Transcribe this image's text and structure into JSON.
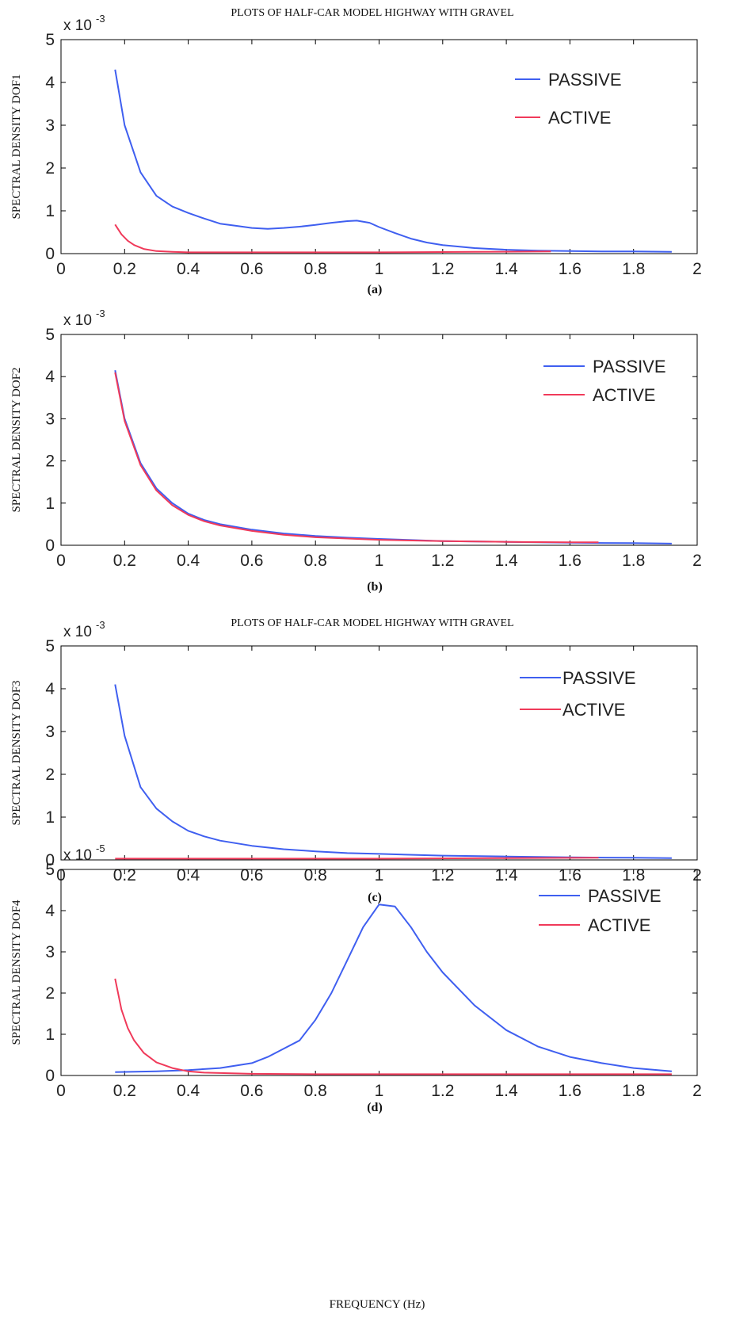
{
  "xlabel": "FREQUENCY (Hz)",
  "chart_data": [
    {
      "type": "line",
      "title": "PLOTS OF HALF-CAR MODEL  HIGHWAY WITH GRAVEL",
      "caption": "(a)",
      "ylabel": "SPECTRAL DENSITY DOF1",
      "exponent": "x 10",
      "exponent_power": "-3",
      "xlim": [
        0,
        2
      ],
      "ylim": [
        0,
        5
      ],
      "xticks": [
        "0",
        "0.2",
        "0.4",
        "0.6",
        "0.8",
        "1",
        "1.2",
        "1.4",
        "1.6",
        "1.8",
        "2"
      ],
      "yticks": [
        "0",
        "1",
        "2",
        "3",
        "4",
        "5"
      ],
      "legend_position": "top-right",
      "series": [
        {
          "name": "PASSIVE",
          "color": "#3f5ff0",
          "x": [
            0.17,
            0.2,
            0.25,
            0.3,
            0.35,
            0.4,
            0.45,
            0.5,
            0.55,
            0.6,
            0.65,
            0.7,
            0.75,
            0.8,
            0.85,
            0.9,
            0.93,
            0.97,
            1.0,
            1.05,
            1.1,
            1.15,
            1.2,
            1.3,
            1.4,
            1.5,
            1.6,
            1.7,
            1.8,
            1.92
          ],
          "values": [
            4.3,
            3.0,
            1.9,
            1.35,
            1.1,
            0.95,
            0.82,
            0.7,
            0.65,
            0.6,
            0.58,
            0.6,
            0.63,
            0.67,
            0.72,
            0.76,
            0.77,
            0.72,
            0.62,
            0.48,
            0.35,
            0.26,
            0.2,
            0.13,
            0.09,
            0.07,
            0.06,
            0.05,
            0.05,
            0.04
          ]
        },
        {
          "name": "ACTIVE",
          "color": "#f03a5a",
          "x": [
            0.17,
            0.19,
            0.21,
            0.23,
            0.26,
            0.3,
            0.35,
            0.4,
            0.5,
            0.7,
            1.0,
            1.3,
            1.54
          ],
          "values": [
            0.68,
            0.45,
            0.3,
            0.2,
            0.11,
            0.06,
            0.04,
            0.03,
            0.03,
            0.03,
            0.03,
            0.04,
            0.05
          ]
        }
      ]
    },
    {
      "type": "line",
      "caption": "(b)",
      "ylabel": "SPECTRAL DENSITY DOF2",
      "exponent": "x 10",
      "exponent_power": "-3",
      "xlim": [
        0,
        2
      ],
      "ylim": [
        0,
        5
      ],
      "xticks": [
        "0",
        "0.2",
        "0.4",
        "0.6",
        "0.8",
        "1",
        "1.2",
        "1.4",
        "1.6",
        "1.8",
        "2"
      ],
      "yticks": [
        "0",
        "1",
        "2",
        "3",
        "4",
        "5"
      ],
      "legend_position": "top-right",
      "series": [
        {
          "name": "PASSIVE",
          "color": "#3f5ff0",
          "x": [
            0.17,
            0.2,
            0.25,
            0.3,
            0.35,
            0.4,
            0.45,
            0.5,
            0.6,
            0.7,
            0.8,
            0.9,
            1.0,
            1.2,
            1.4,
            1.6,
            1.8,
            1.92
          ],
          "values": [
            4.15,
            3.0,
            1.95,
            1.35,
            1.0,
            0.75,
            0.6,
            0.5,
            0.37,
            0.28,
            0.22,
            0.18,
            0.15,
            0.1,
            0.08,
            0.06,
            0.05,
            0.04
          ]
        },
        {
          "name": "ACTIVE",
          "color": "#f03a5a",
          "x": [
            0.17,
            0.2,
            0.25,
            0.3,
            0.35,
            0.4,
            0.45,
            0.5,
            0.6,
            0.7,
            0.8,
            0.9,
            1.0,
            1.2,
            1.4,
            1.6,
            1.69
          ],
          "values": [
            4.1,
            2.95,
            1.9,
            1.3,
            0.95,
            0.72,
            0.57,
            0.47,
            0.34,
            0.25,
            0.19,
            0.16,
            0.13,
            0.1,
            0.08,
            0.07,
            0.07
          ]
        }
      ]
    },
    {
      "type": "line",
      "title": "PLOTS OF HALF-CAR MODEL  HIGHWAY WITH GRAVEL",
      "caption": "(c)",
      "ylabel": "SPECTRAL DENSITY DOF3",
      "exponent": "x 10",
      "exponent_power": "-3",
      "xlim": [
        0,
        2
      ],
      "ylim": [
        0,
        5
      ],
      "xticks": [
        "0",
        "0.2",
        "0.4",
        "0.6",
        "0.8",
        "1",
        "1.2",
        "1.4",
        "1.6",
        "1.8",
        "2"
      ],
      "yticks": [
        "0",
        "1",
        "2",
        "3",
        "4",
        "5"
      ],
      "legend_position": "top-right",
      "series": [
        {
          "name": "PASSIVE",
          "color": "#3f5ff0",
          "x": [
            0.17,
            0.2,
            0.25,
            0.3,
            0.35,
            0.4,
            0.45,
            0.5,
            0.6,
            0.7,
            0.8,
            0.9,
            1.0,
            1.2,
            1.4,
            1.6,
            1.8,
            1.92
          ],
          "values": [
            4.1,
            2.9,
            1.7,
            1.2,
            0.9,
            0.68,
            0.55,
            0.45,
            0.33,
            0.25,
            0.2,
            0.16,
            0.14,
            0.1,
            0.08,
            0.06,
            0.05,
            0.04
          ]
        },
        {
          "name": "ACTIVE",
          "color": "#f03a5a",
          "x": [
            0.17,
            0.5,
            1.0,
            1.4,
            1.69
          ],
          "values": [
            0.03,
            0.03,
            0.03,
            0.04,
            0.05
          ]
        }
      ]
    },
    {
      "type": "line",
      "caption": "(d)",
      "ylabel": "SPECTRAL DENSITY DOF4",
      "exponent": "x 10",
      "exponent_power": "-5",
      "xlim": [
        0,
        2
      ],
      "ylim": [
        0,
        5
      ],
      "xticks": [
        "0",
        "0.2",
        "0.4",
        "0.6",
        "0.8",
        "1",
        "1.2",
        "1.4",
        "1.6",
        "1.8",
        "2"
      ],
      "yticks": [
        "0",
        "1",
        "2",
        "3",
        "4",
        "5"
      ],
      "legend_position": "top-right",
      "series": [
        {
          "name": "PASSIVE",
          "color": "#3f5ff0",
          "x": [
            0.17,
            0.3,
            0.4,
            0.5,
            0.6,
            0.65,
            0.7,
            0.75,
            0.8,
            0.85,
            0.9,
            0.95,
            1.0,
            1.05,
            1.1,
            1.15,
            1.2,
            1.3,
            1.4,
            1.5,
            1.6,
            1.7,
            1.8,
            1.92
          ],
          "values": [
            0.08,
            0.1,
            0.13,
            0.18,
            0.3,
            0.45,
            0.65,
            0.85,
            1.35,
            2.0,
            2.8,
            3.6,
            4.15,
            4.1,
            3.6,
            3.0,
            2.5,
            1.7,
            1.1,
            0.7,
            0.45,
            0.3,
            0.18,
            0.1
          ]
        },
        {
          "name": "ACTIVE",
          "color": "#f03a5a",
          "x": [
            0.17,
            0.19,
            0.21,
            0.23,
            0.26,
            0.3,
            0.35,
            0.4,
            0.45,
            0.5,
            0.6,
            0.8,
            1.0,
            1.3,
            1.6,
            1.92
          ],
          "values": [
            2.35,
            1.6,
            1.15,
            0.85,
            0.55,
            0.32,
            0.18,
            0.1,
            0.07,
            0.06,
            0.04,
            0.03,
            0.03,
            0.03,
            0.03,
            0.03
          ]
        }
      ]
    }
  ]
}
